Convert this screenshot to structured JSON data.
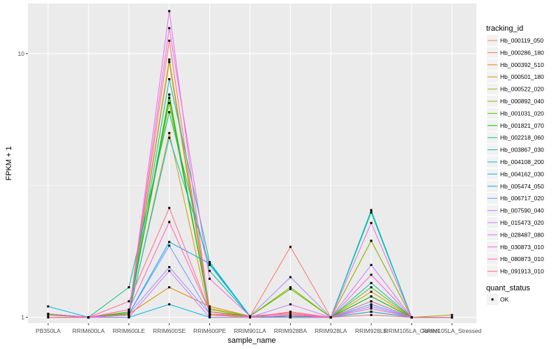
{
  "chart_data": {
    "type": "line",
    "xlabel": "sample_name",
    "ylabel": "FPKM + 1",
    "y_scale": "log",
    "ylim": [
      0.95,
      15.5
    ],
    "y_ticks": [
      1,
      10
    ],
    "y_minor_ticks": [
      3.1623
    ],
    "grid": true,
    "background": "#ebebeb",
    "categories": [
      "PB350LA",
      "RRIM600LA",
      "RRIM600LE",
      "RRIM600SE",
      "RRIM600PE",
      "RRIM901LA",
      "RRIM928BA",
      "RRIM928LA",
      "RRIM928LE",
      "RRIM105LA_Control",
      "RRIM105LA_Stressed"
    ],
    "legend_position": "right",
    "legend": {
      "title": "tracking_id",
      "status_title": "quant_status",
      "status_label": "OK"
    },
    "series": [
      {
        "name": "Hb_000119_050",
        "color": "#F8766D",
        "values": [
          1.03,
          1.0,
          1.03,
          11.2,
          1.02,
          1.01,
          1.85,
          1.0,
          1.02,
          1.0,
          1.0
        ]
      },
      {
        "name": "Hb_000286_180",
        "color": "#F07F34",
        "values": [
          1.03,
          1.0,
          1.03,
          9.3,
          1.02,
          1.01,
          1.04,
          1.0,
          1.05,
          1.0,
          1.0
        ]
      },
      {
        "name": "Hb_000392_510",
        "color": "#E58700",
        "values": [
          1.03,
          1.0,
          1.03,
          1.3,
          1.1,
          1.01,
          1.01,
          1.0,
          1.2,
          1.0,
          1.0
        ]
      },
      {
        "name": "Hb_000501_180",
        "color": "#D29B00",
        "values": [
          1.0,
          1.0,
          1.02,
          5.0,
          1.02,
          1.0,
          1.01,
          1.0,
          1.25,
          1.0,
          1.0
        ]
      },
      {
        "name": "Hb_000522_020",
        "color": "#B2AA00",
        "values": [
          1.03,
          1.0,
          1.05,
          9.5,
          1.08,
          1.01,
          1.3,
          1.0,
          1.95,
          1.0,
          1.0
        ]
      },
      {
        "name": "Hb_000892_040",
        "color": "#8EB600",
        "values": [
          1.02,
          1.0,
          1.05,
          6.5,
          1.07,
          1.01,
          1.3,
          1.0,
          1.95,
          1.0,
          1.02
        ]
      },
      {
        "name": "Hb_001031_020",
        "color": "#5BBF00",
        "values": [
          1.02,
          1.0,
          1.02,
          7.0,
          1.05,
          1.01,
          1.28,
          1.0,
          1.3,
          1.0,
          1.0
        ]
      },
      {
        "name": "Hb_001821_070",
        "color": "#00C008",
        "values": [
          1.03,
          1.0,
          1.04,
          6.8,
          1.05,
          1.01,
          1.01,
          1.0,
          1.2,
          1.0,
          1.0
        ]
      },
      {
        "name": "Hb_002218_060",
        "color": "#00C07D",
        "values": [
          1.03,
          1.0,
          1.3,
          6.0,
          1.5,
          1.01,
          1.01,
          1.0,
          2.5,
          1.0,
          1.0
        ]
      },
      {
        "name": "Hb_003867_030",
        "color": "#00C0AF",
        "values": [
          1.03,
          1.0,
          1.03,
          8.0,
          1.62,
          1.01,
          1.0,
          1.0,
          1.35,
          1.0,
          1.0
        ]
      },
      {
        "name": "Hb_004108_200",
        "color": "#00BDD3",
        "values": [
          1.03,
          1.0,
          1.03,
          4.8,
          1.58,
          1.01,
          1.0,
          1.0,
          2.55,
          1.0,
          1.0
        ]
      },
      {
        "name": "Hb_004162_030",
        "color": "#00B5EA",
        "values": [
          1.1,
          1.0,
          1.0,
          1.12,
          1.0,
          1.0,
          1.0,
          1.0,
          1.05,
          1.0,
          1.0
        ]
      },
      {
        "name": "Hb_005474_050",
        "color": "#00A9FF",
        "values": [
          1.03,
          1.0,
          1.03,
          1.93,
          1.6,
          1.01,
          1.0,
          1.0,
          1.15,
          1.0,
          1.0
        ]
      },
      {
        "name": "Hb_006717_020",
        "color": "#5E9CFF",
        "values": [
          1.03,
          1.0,
          1.03,
          1.87,
          1.03,
          1.01,
          1.0,
          1.0,
          1.12,
          1.0,
          1.0
        ]
      },
      {
        "name": "Hb_007590_040",
        "color": "#A58AFF",
        "values": [
          1.03,
          1.0,
          1.03,
          1.55,
          1.03,
          1.01,
          1.42,
          1.0,
          1.1,
          1.0,
          1.0
        ]
      },
      {
        "name": "Hb_015473_020",
        "color": "#CC7AF8",
        "values": [
          1.0,
          1.0,
          1.0,
          1.5,
          1.0,
          1.0,
          1.12,
          1.0,
          1.58,
          1.0,
          1.0
        ]
      },
      {
        "name": "Hb_028487_080",
        "color": "#EA6AEF",
        "values": [
          1.03,
          1.0,
          1.03,
          14.5,
          1.03,
          1.01,
          1.0,
          1.0,
          2.28,
          1.0,
          1.0
        ]
      },
      {
        "name": "Hb_030873_010",
        "color": "#FB61D7",
        "values": [
          1.03,
          1.0,
          1.03,
          12.5,
          1.4,
          1.01,
          1.03,
          1.0,
          1.45,
          1.0,
          1.0
        ]
      },
      {
        "name": "Hb_080873_010",
        "color": "#FF62B6",
        "values": [
          1.0,
          1.0,
          1.07,
          2.3,
          1.05,
          1.0,
          1.05,
          1.0,
          1.08,
          1.0,
          1.0
        ]
      },
      {
        "name": "Hb_091913_010",
        "color": "#FF6C91",
        "values": [
          1.0,
          1.0,
          1.15,
          2.6,
          1.05,
          1.0,
          1.02,
          1.0,
          1.15,
          1.0,
          1.0
        ]
      }
    ]
  }
}
